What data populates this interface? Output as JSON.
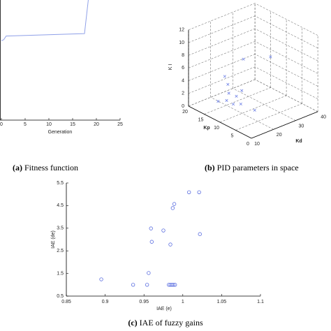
{
  "chart_data": [
    {
      "type": "line",
      "caption_label": "(a)",
      "caption": "Fitness function",
      "x_label": "Generation",
      "xlim": [
        0,
        25
      ],
      "xticks": [
        0,
        5,
        10,
        15,
        20,
        25
      ],
      "ylim": [
        0,
        1
      ],
      "x": [
        0,
        0.5,
        1,
        17.5,
        18.3
      ],
      "series": [
        {
          "color": "#8fa0e8",
          "values": [
            0.66,
            0.67,
            0.7,
            0.72,
            1.0
          ]
        }
      ]
    },
    {
      "type": "scatter3d",
      "caption_label": "(b)",
      "caption": "PID parameters in space",
      "x_label": "Kd",
      "y_label": "Kp",
      "z_label": "K I",
      "xlim": [
        10,
        40
      ],
      "xticks": [
        10,
        20,
        30,
        40
      ],
      "ylim": [
        0,
        20
      ],
      "yticks": [
        0,
        5,
        10,
        15,
        20
      ],
      "zlim": [
        0,
        12
      ],
      "zticks": [
        0,
        2,
        4,
        6,
        8,
        10,
        12
      ],
      "grid": true,
      "color": "#6f82e6",
      "points": {
        "x": [
          14,
          15,
          16,
          13,
          17,
          12,
          18,
          20,
          15,
          22,
          30,
          16
        ],
        "y": [
          10,
          11,
          9,
          10,
          8,
          12,
          9,
          6,
          12,
          11,
          8,
          10
        ],
        "z": [
          4,
          5,
          3.5,
          3,
          4.5,
          2.5,
          2,
          1.5,
          6,
          8,
          8,
          2
        ]
      }
    },
    {
      "type": "scatter",
      "caption_label": "(c)",
      "caption": "IAE of fuzzy gains",
      "x_label": "IAE (e)",
      "y_label": "IAE (de)",
      "xlim": [
        0.85,
        1.1
      ],
      "xticks": [
        0.85,
        0.9,
        0.95,
        1,
        1.05,
        1.1
      ],
      "ylim": [
        0.5,
        5.5
      ],
      "yticks": [
        0.5,
        1.5,
        2.5,
        3.5,
        4.5,
        5.5
      ],
      "color": "#5b6ee0",
      "x": [
        0.895,
        0.936,
        0.954,
        0.956,
        0.959,
        0.96,
        0.975,
        0.984,
        0.987,
        0.989,
        0.982,
        0.984,
        0.986,
        0.988,
        0.99,
        1.008,
        1.021,
        1.022
      ],
      "y": [
        1.24,
        1.0,
        1.0,
        1.52,
        3.49,
        2.9,
        3.4,
        2.78,
        4.39,
        4.57,
        1.0,
        1.0,
        1.0,
        1.0,
        1.0,
        5.09,
        5.09,
        3.24
      ]
    }
  ]
}
